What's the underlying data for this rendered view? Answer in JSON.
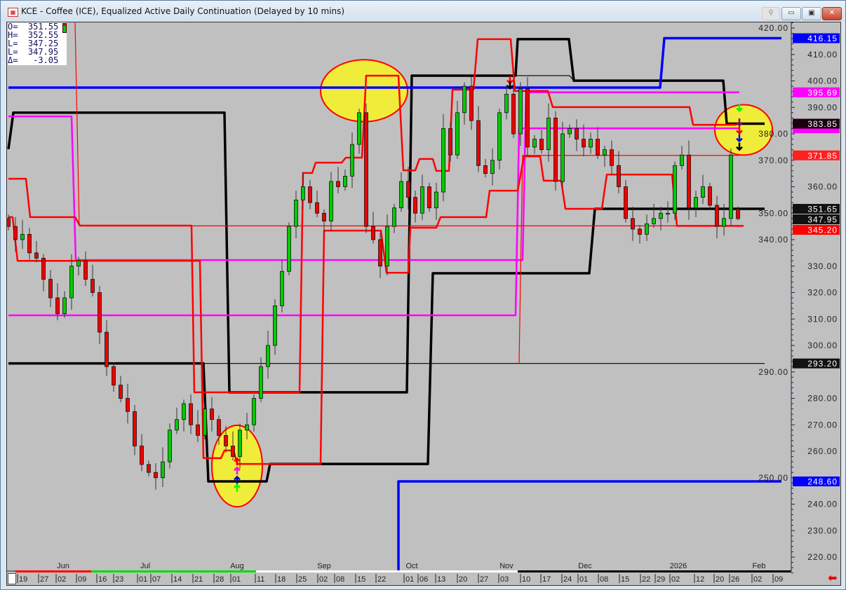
{
  "window": {
    "title": "KCE - Coffee (ICE), Equalized Active Daily Continuation (Delayed by 10 mins)",
    "app_icon": "chart-app-icon",
    "buttons": {
      "pin": "⚲",
      "minimize": "▭",
      "maximize": "▣",
      "close": "✕"
    }
  },
  "legend": {
    "open": "O=  351.55",
    "high": "H=  352.55",
    "low": "L=  347.25",
    "last": "L=  347.95",
    "change": "Δ=   -3.05"
  },
  "chart_data": {
    "type": "candlestick",
    "symbol": "KCE",
    "ylim": [
      214,
      422
    ],
    "y_ticks": [
      "220.00",
      "230.00",
      "240.00",
      "250.00",
      "260.00",
      "270.00",
      "280.00",
      "290.00",
      "300.00",
      "310.00",
      "320.00",
      "330.00",
      "340.00",
      "350.00",
      "360.00",
      "370.00",
      "380.00",
      "390.00",
      "400.00",
      "410.00",
      "420.00"
    ],
    "x_months": [
      "Jun",
      "Jul",
      "Aug",
      "Sep",
      "Oct",
      "Nov",
      "Dec",
      "2026",
      "Feb"
    ],
    "x_days": [
      "19",
      "27",
      "02",
      "09",
      "16",
      "23",
      "01",
      "07",
      "14",
      "21",
      "28",
      "01",
      "11",
      "18",
      "25",
      "02",
      "08",
      "15",
      "22",
      "01",
      "06",
      "13",
      "20",
      "27",
      "03",
      "10",
      "17",
      "24",
      "01",
      "08",
      "15",
      "22",
      "29",
      "02",
      "12",
      "20",
      "26",
      "02",
      "09"
    ],
    "closes": [
      345,
      340,
      342,
      335,
      333,
      325,
      318,
      312,
      318,
      330,
      332,
      325,
      320,
      305,
      292,
      285,
      280,
      275,
      262,
      255,
      252,
      250,
      256,
      268,
      272,
      278,
      270,
      266,
      276,
      272,
      266,
      262,
      258,
      268,
      270,
      280,
      292,
      300,
      315,
      328,
      345,
      355,
      360,
      354,
      350,
      347,
      362,
      360,
      364,
      376,
      388,
      345,
      340,
      330,
      345,
      352,
      362,
      356,
      350,
      360,
      352,
      358,
      382,
      372,
      388,
      398,
      385,
      368,
      365,
      370,
      388,
      395,
      380,
      397,
      375,
      378,
      374,
      386,
      362,
      380,
      382,
      378,
      375,
      378,
      372,
      374,
      368,
      360,
      348,
      344,
      342,
      346,
      348,
      350,
      350,
      368,
      372,
      352,
      356,
      360,
      353,
      345,
      348,
      372,
      347.95
    ],
    "last_bar": {
      "open": 351.55,
      "high": 352.55,
      "low": 347.25,
      "close": 347.95
    },
    "indicator_lines": [
      {
        "color": "#000000",
        "weight": "thick",
        "points": [
          [
            0,
            374.2
          ],
          [
            0.7,
            388
          ],
          [
            30.8,
            388
          ],
          [
            31.5,
            282.3
          ],
          [
            56.8,
            282.3
          ],
          [
            57.5,
            402
          ],
          [
            72.3,
            402
          ],
          [
            72.6,
            415.8
          ],
          [
            79.9,
            415.8
          ],
          [
            80.6,
            400.1
          ],
          [
            101.9,
            400.1
          ],
          [
            102.4,
            383.85
          ],
          [
            107.8,
            383.85
          ]
        ]
      },
      {
        "color": "#000000",
        "weight": "thin",
        "points": [
          [
            72.3,
            402
          ],
          [
            80,
            402
          ],
          [
            80.6,
            400.1
          ]
        ]
      },
      {
        "color": "#000000",
        "weight": "thick",
        "points": [
          [
            0,
            293.2
          ],
          [
            27.8,
            293.2
          ],
          [
            28.5,
            248.6
          ],
          [
            36.8,
            248.6
          ],
          [
            37.3,
            255.2
          ],
          [
            59.8,
            255.2
          ],
          [
            60.5,
            327.3
          ],
          [
            82.8,
            327.3
          ],
          [
            83.6,
            351.65
          ],
          [
            107.8,
            351.65
          ]
        ]
      },
      {
        "color": "#000000",
        "weight": "thin",
        "points": [
          [
            27.8,
            293.2
          ],
          [
            107.8,
            293.2
          ]
        ]
      },
      {
        "color": "#0000ff",
        "weight": "thick",
        "points": [
          [
            0,
            397.5
          ],
          [
            92.9,
            397.5
          ],
          [
            93.5,
            416.15
          ],
          [
            110.2,
            416.15
          ]
        ]
      },
      {
        "color": "#0000ff",
        "weight": "thick",
        "points": [
          [
            55.6,
            214
          ],
          [
            55.6,
            248.6
          ],
          [
            110.2,
            248.6
          ]
        ]
      },
      {
        "color": "#ff00ff",
        "weight": "medium",
        "points": [
          [
            0,
            386.6
          ],
          [
            9,
            386.6
          ],
          [
            9.6,
            332.3
          ],
          [
            73.3,
            332.3
          ],
          [
            73.8,
            395.69
          ],
          [
            104.2,
            395.69
          ]
        ]
      },
      {
        "color": "#ff00ff",
        "weight": "medium",
        "points": [
          [
            0,
            311.4
          ],
          [
            72.3,
            311.4
          ],
          [
            72.8,
            382.1
          ],
          [
            104.3,
            382.1
          ]
        ]
      },
      {
        "color": "#ff0000",
        "weight": "thin",
        "points": [
          [
            9.5,
            422
          ],
          [
            10.1,
            345.2
          ],
          [
            104.8,
            345.2
          ]
        ]
      },
      {
        "color": "#ff0000",
        "weight": "thin",
        "points": [
          [
            72.8,
            293.4
          ],
          [
            73.3,
            371.85
          ],
          [
            104.3,
            371.85
          ]
        ]
      },
      {
        "color": "#ff0000",
        "weight": "medium",
        "points": [
          [
            0,
            363
          ],
          [
            2.5,
            363
          ],
          [
            3.1,
            348.5
          ],
          [
            9.5,
            348.5
          ],
          [
            10.2,
            345.3
          ],
          [
            26.1,
            345.3
          ],
          [
            26.5,
            282.3
          ],
          [
            41.5,
            282.3
          ],
          [
            42,
            365.2
          ],
          [
            43.3,
            365.2
          ],
          [
            43.8,
            369.1
          ],
          [
            47.5,
            369.1
          ],
          [
            48.1,
            371
          ],
          [
            50.4,
            371
          ],
          [
            51,
            402
          ],
          [
            55.6,
            402
          ],
          [
            56.3,
            366.2
          ],
          [
            58,
            366.2
          ],
          [
            58.6,
            370.5
          ],
          [
            60.5,
            370.5
          ],
          [
            61,
            366
          ],
          [
            62.8,
            366
          ],
          [
            63.3,
            396.7
          ],
          [
            66.3,
            396.7
          ],
          [
            66.9,
            415.8
          ],
          [
            71.6,
            415.8
          ],
          [
            72.2,
            396.2
          ],
          [
            76.9,
            396.2
          ],
          [
            77.6,
            390.1
          ],
          [
            97.1,
            390.1
          ],
          [
            97.6,
            383.4
          ],
          [
            103.8,
            383.4
          ]
        ]
      },
      {
        "color": "#ff0000",
        "weight": "medium",
        "points": [
          [
            0,
            348.5
          ],
          [
            0.6,
            348.5
          ],
          [
            1.3,
            332
          ],
          [
            27.3,
            332
          ],
          [
            27.8,
            257.4
          ],
          [
            30.3,
            257.4
          ],
          [
            30.8,
            260.3
          ],
          [
            32.1,
            260.3
          ],
          [
            32.6,
            255.2
          ],
          [
            44.5,
            255.2
          ],
          [
            45,
            343.4
          ],
          [
            53.1,
            343.4
          ],
          [
            53.9,
            327.5
          ],
          [
            57,
            327.5
          ],
          [
            57.3,
            344.5
          ],
          [
            61,
            344.5
          ],
          [
            61.6,
            348.5
          ],
          [
            68.1,
            348.5
          ],
          [
            68.6,
            358.5
          ],
          [
            72.6,
            358.5
          ],
          [
            73.5,
            371.5
          ],
          [
            75.8,
            371.5
          ],
          [
            76.3,
            362.3
          ],
          [
            78.8,
            362.3
          ],
          [
            79.4,
            351.65
          ],
          [
            83.3,
            351.65
          ],
          [
            84.6,
            351.65
          ],
          [
            85.3,
            364.6
          ],
          [
            94.6,
            364.6
          ],
          [
            95.3,
            345.2
          ],
          [
            104.8,
            345.2
          ]
        ]
      }
    ],
    "highlight_ellipses": [
      {
        "bar": 50.7,
        "price": 396.3,
        "bars_radius": 6.2,
        "price_radius": 11.7
      },
      {
        "bar": 32.6,
        "price": 254.4,
        "bars_radius": 3.6,
        "price_radius": 15.4
      },
      {
        "bar": 104.8,
        "price": 381.5,
        "bars_radius": 4.1,
        "price_radius": 9.5
      }
    ],
    "signal_arrows": [
      {
        "bar": 32.6,
        "price": 246,
        "dir": "up",
        "color": "#00ff00"
      },
      {
        "bar": 32.6,
        "price": 249,
        "dir": "up",
        "color": "#0000cc"
      },
      {
        "bar": 32.6,
        "price": 252.5,
        "dir": "up",
        "color": "#ff00ff"
      },
      {
        "bar": 32.6,
        "price": 256,
        "dir": "up",
        "color": "#ff0000"
      },
      {
        "bar": 71.5,
        "price": 400.5,
        "dir": "down",
        "color": "#ff0000"
      },
      {
        "bar": 71.5,
        "price": 398.5,
        "dir": "down",
        "color": "#000000"
      },
      {
        "bar": 104.2,
        "price": 390,
        "dir": "down",
        "color": "#00ff00"
      },
      {
        "bar": 104.2,
        "price": 384.5,
        "dir": "down",
        "color": "#800080"
      },
      {
        "bar": 104.2,
        "price": 381.5,
        "dir": "down",
        "color": "#ff0000"
      },
      {
        "bar": 104.2,
        "price": 378.5,
        "dir": "down",
        "color": "#0000ff"
      },
      {
        "bar": 104.2,
        "price": 375.3,
        "dir": "down",
        "color": "#000000"
      }
    ],
    "price_labels": [
      {
        "value": "416.15",
        "price": 416.15,
        "bg": "#0000ff",
        "fg": "#ffffff"
      },
      {
        "value": "395.69",
        "price": 395.69,
        "bg": "#ff00ff",
        "fg": "#ffffff"
      },
      {
        "value": "",
        "price": 382.1,
        "bg": "#ff00ff",
        "fg": "#ffffff"
      },
      {
        "value": "383.85",
        "price": 383.85,
        "bg": "#1a0010",
        "fg": "#ffffff"
      },
      {
        "value": "371.85",
        "price": 371.85,
        "bg": "#ff2020",
        "fg": "#ffffff"
      },
      {
        "value": "351.65",
        "price": 351.65,
        "bg": "#111111",
        "fg": "#ffffff"
      },
      {
        "value": "347.95",
        "price": 347.95,
        "bg": "#111111",
        "fg": "#ffffff"
      },
      {
        "value": "345.20",
        "price": 345.2,
        "bg": "#ff0000",
        "fg": "#ffffff"
      },
      {
        "value": "293.20",
        "price": 293.2,
        "bg": "#111111",
        "fg": "#ffffff"
      },
      {
        "value": "248.60",
        "price": 248.6,
        "bg": "#0000ff",
        "fg": "#ffffff"
      }
    ],
    "colors": {
      "up": "#00cc00",
      "down": "#ee0000",
      "background": "#c0c0c0",
      "highlight": "#f0ec3a"
    }
  },
  "footer": {
    "scroll_back_icon": "red-left-arrow-icon"
  }
}
